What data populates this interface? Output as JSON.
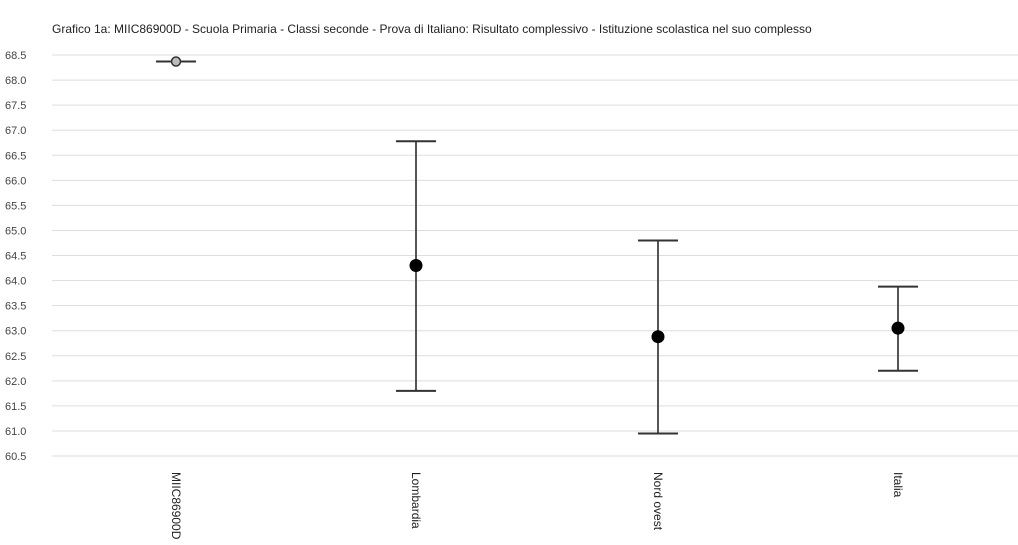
{
  "chart_data": {
    "type": "scatter",
    "title": "Grafico 1a: MIIC86900D - Scuola Primaria - Classi seconde - Prova di Italiano: Risultato complessivo - Istituzione scolastica nel suo complesso",
    "xlabel": "",
    "ylabel": "",
    "ylim": [
      60.5,
      68.5
    ],
    "yticks": [
      "68.5",
      "68.0",
      "67.5",
      "67.0",
      "66.5",
      "66.0",
      "65.5",
      "65.0",
      "64.5",
      "64.0",
      "63.5",
      "63.0",
      "62.5",
      "62.0",
      "61.5",
      "61.0",
      "60.5"
    ],
    "categories": [
      "MIIC86900D",
      "Lombardia",
      "Nord ovest",
      "Italia"
    ],
    "values": [
      68.37,
      64.3,
      62.88,
      63.05
    ],
    "error_low": [
      68.37,
      61.8,
      60.95,
      62.2
    ],
    "error_high": [
      68.37,
      66.78,
      64.8,
      63.88
    ],
    "marker_style": [
      "hollow",
      "filled",
      "filled",
      "filled"
    ],
    "grid": true,
    "colors": {
      "marker": "#000000",
      "errorbar": "#555555",
      "grid": "#dddddd",
      "hollow_fill": "#bbbbbb"
    }
  }
}
